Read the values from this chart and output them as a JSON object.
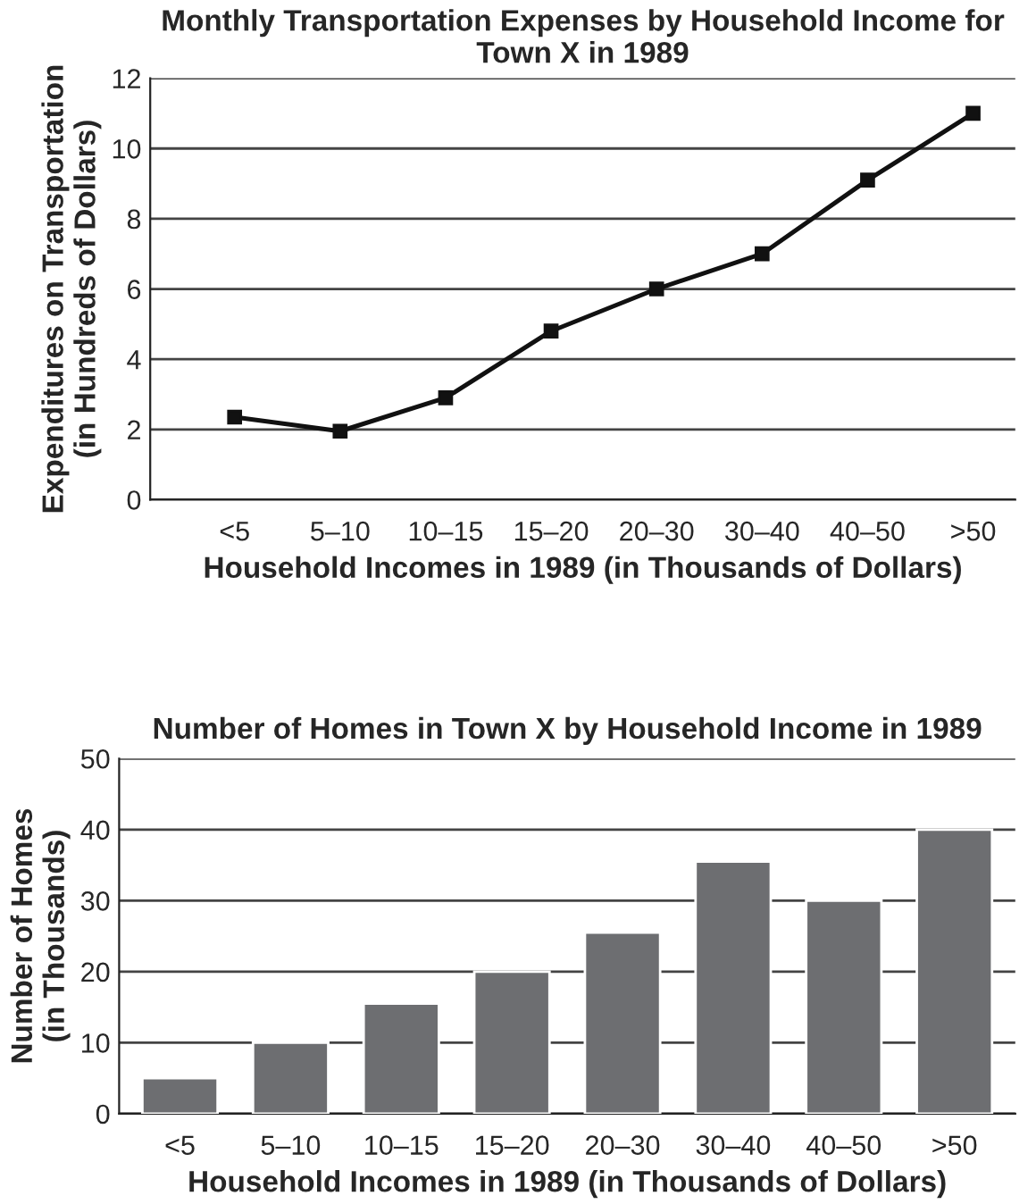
{
  "chart_data": [
    {
      "type": "line",
      "title": "Monthly Transportation Expenses by Household Income for Town X in 1989",
      "xlabel": "Household Incomes in 1989 (in Thousands of Dollars)",
      "ylabel": "Expenditures on Transportation\n(in Hundreds of Dollars)",
      "categories": [
        "<5",
        "5–10",
        "10–15",
        "15–20",
        "20–30",
        "30–40",
        "40–50",
        ">50"
      ],
      "values": [
        2.35,
        1.95,
        2.9,
        4.8,
        6.0,
        7.0,
        9.1,
        11.0
      ],
      "color": "#111111",
      "marker": "square",
      "line_style": "solid",
      "ylim": [
        0,
        12
      ],
      "yticks": [
        0,
        2,
        4,
        6,
        8,
        10,
        12
      ],
      "grid": "y",
      "legend": false
    },
    {
      "type": "bar",
      "title": "Number of Homes in Town X by Household Income in 1989",
      "xlabel": "Household Incomes in 1989 (in Thousands of Dollars)",
      "ylabel": "Number of Homes\n(in Thousands)",
      "categories": [
        "<5",
        "5–10",
        "10–15",
        "15–20",
        "20–30",
        "30–40",
        "40–50",
        ">50"
      ],
      "values": [
        5,
        10,
        15.5,
        20,
        25.5,
        35.5,
        30,
        40
      ],
      "color": "#6d6e71",
      "ylim": [
        0,
        50
      ],
      "yticks": [
        0,
        10,
        20,
        30,
        40,
        50
      ],
      "grid": "y",
      "legend": false
    }
  ]
}
